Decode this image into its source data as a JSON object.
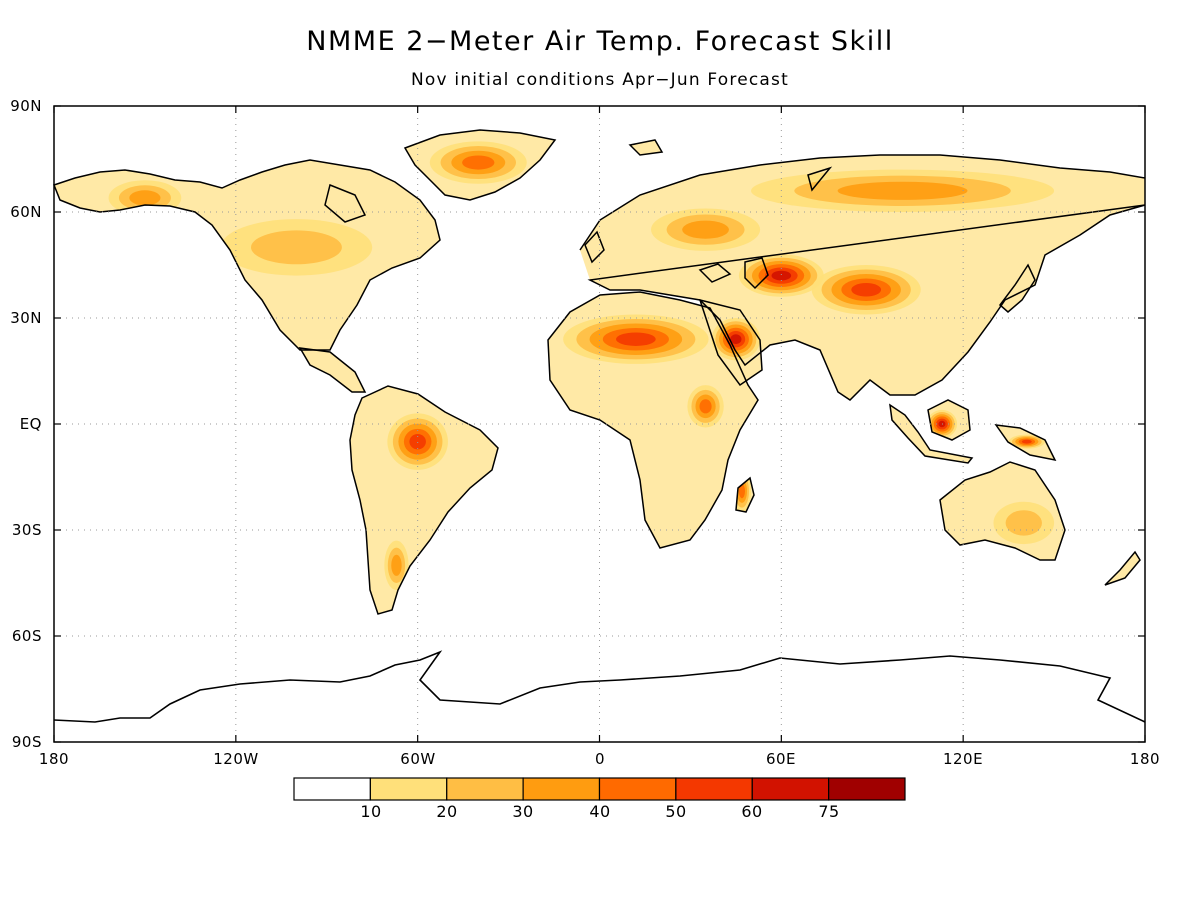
{
  "title": "NMME 2−Meter Air Temp. Forecast Skill",
  "subtitle": "Nov initial conditions   Apr−Jun Forecast",
  "map": {
    "projection": "equirectangular",
    "extent": {
      "lon": [
        -180,
        180
      ],
      "lat": [
        -90,
        90
      ]
    },
    "lat_labels": [
      "90N",
      "60N",
      "30N",
      "EQ",
      "30S",
      "60S",
      "90S"
    ],
    "lat_values": [
      90,
      60,
      30,
      0,
      -30,
      -60,
      -90
    ],
    "lon_labels": [
      "180",
      "120W",
      "60W",
      "0",
      "60E",
      "120E",
      "180"
    ],
    "lon_values": [
      -180,
      -120,
      -60,
      0,
      60,
      120,
      180
    ],
    "gridlines": "dotted",
    "colorbar": {
      "labels": [
        "10",
        "20",
        "30",
        "40",
        "50",
        "60",
        "75"
      ],
      "colors": [
        "#ffffff",
        "#ffe07a",
        "#ffbe44",
        "#ff9c10",
        "#ff6a00",
        "#f43800",
        "#d21200",
        "#a00000"
      ]
    }
  },
  "skill_regions": [
    {
      "name": "greenland",
      "level": 4,
      "lat": 74,
      "lon": -40,
      "rlon": 16,
      "rlat": 6
    },
    {
      "name": "sahara",
      "level": 5,
      "lat": 24,
      "lon": 12,
      "rlon": 24,
      "rlat": 7
    },
    {
      "name": "arabia",
      "level": 6,
      "lat": 24,
      "lon": 45,
      "rlon": 8,
      "rlat": 6
    },
    {
      "name": "central-asia",
      "level": 6,
      "lat": 42,
      "lon": 60,
      "rlon": 14,
      "rlat": 6
    },
    {
      "name": "west-china",
      "level": 5,
      "lat": 38,
      "lon": 88,
      "rlon": 18,
      "rlat": 7
    },
    {
      "name": "borneo",
      "level": 6,
      "lat": 0,
      "lon": 113,
      "rlon": 5,
      "rlat": 4
    },
    {
      "name": "new-guinea",
      "level": 5,
      "lat": -5,
      "lon": 141,
      "rlon": 6,
      "rlat": 2
    },
    {
      "name": "amazon",
      "level": 5,
      "lat": -5,
      "lon": -60,
      "rlon": 10,
      "rlat": 8
    },
    {
      "name": "madagascar",
      "level": 4,
      "lat": -19,
      "lon": 47,
      "rlon": 3,
      "rlat": 6
    },
    {
      "name": "east-africa",
      "level": 4,
      "lat": 5,
      "lon": 35,
      "rlon": 6,
      "rlat": 6
    },
    {
      "name": "siberia",
      "level": 3,
      "lat": 66,
      "lon": 100,
      "rlon": 50,
      "rlat": 6
    },
    {
      "name": "alaska",
      "level": 3,
      "lat": 64,
      "lon": -150,
      "rlon": 12,
      "rlat": 5
    },
    {
      "name": "north-america",
      "level": 2,
      "lat": 50,
      "lon": -100,
      "rlon": 25,
      "rlat": 8
    },
    {
      "name": "eastern-europe",
      "level": 3,
      "lat": 55,
      "lon": 35,
      "rlon": 18,
      "rlat": 6
    },
    {
      "name": "australia",
      "level": 2,
      "lat": -28,
      "lon": 140,
      "rlon": 10,
      "rlat": 6
    },
    {
      "name": "argentina",
      "level": 3,
      "lat": -40,
      "lon": -67,
      "rlon": 4,
      "rlat": 7
    }
  ]
}
